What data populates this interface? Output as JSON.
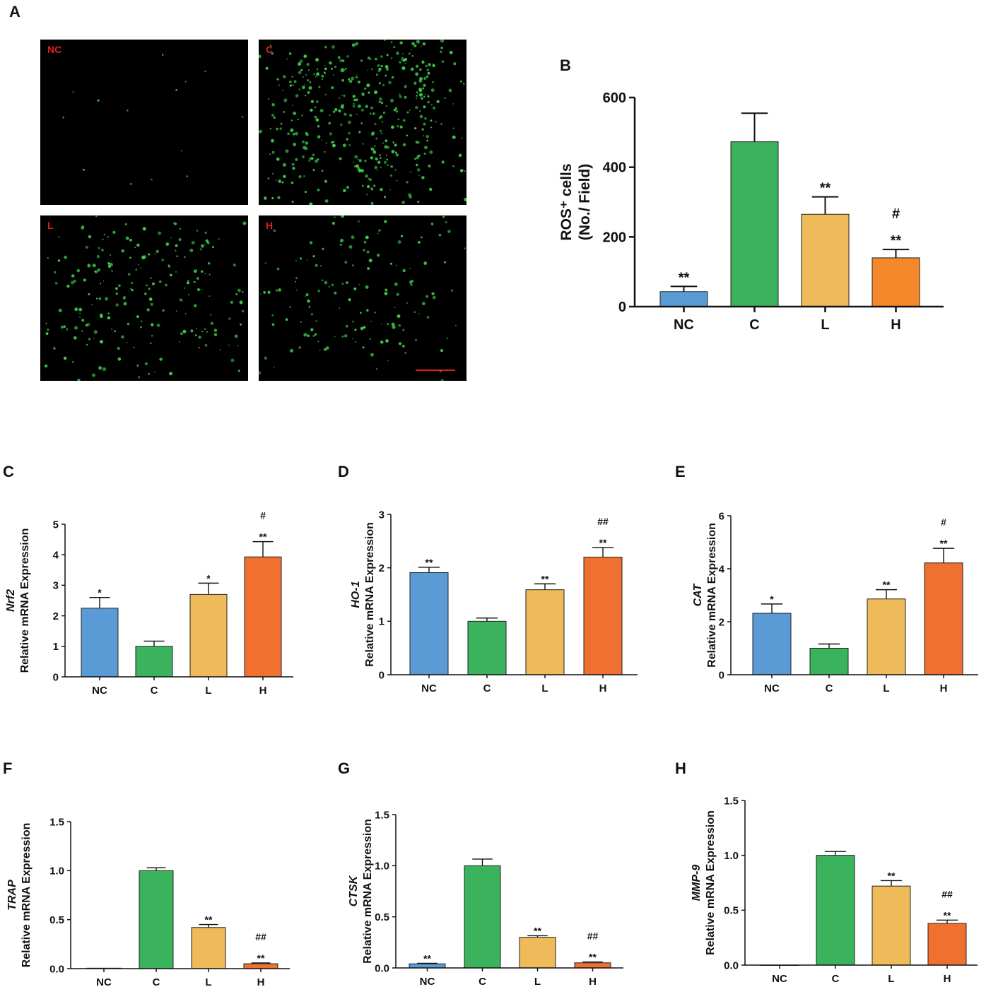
{
  "figure": {
    "panel_letters": [
      "A",
      "B",
      "C",
      "D",
      "E",
      "F",
      "G",
      "H"
    ],
    "micrographs": [
      {
        "label": "NC",
        "dots": 14,
        "bright": false
      },
      {
        "label": "C",
        "dots": 420,
        "bright": true
      },
      {
        "label": "L",
        "dots": 220,
        "bright": true
      },
      {
        "label": "H",
        "dots": 150,
        "bright": true
      }
    ],
    "scale_bar_color": "#e02020"
  },
  "colors": {
    "NC": "#5b9bd5",
    "C": "#3bb35c",
    "L": "#efba5a",
    "H": "#f07030",
    "H_alt": "#f5882a",
    "micro_dot": "#3fd04a"
  },
  "chart_data": [
    {
      "type": "bar",
      "panel": "B",
      "categories": [
        "NC",
        "C",
        "L",
        "H"
      ],
      "values": [
        43,
        473,
        265,
        140
      ],
      "errors": [
        15,
        82,
        50,
        24
      ],
      "significance": [
        [
          "**"
        ],
        [],
        [
          "**"
        ],
        [
          "**",
          "#"
        ]
      ],
      "ylabel_lines": [
        "ROS⁺ cells",
        "(No./ Field)"
      ],
      "ylabel_gene": "",
      "ylim": [
        0,
        600
      ],
      "yticks": [
        "0",
        "200",
        "400",
        "600"
      ]
    },
    {
      "type": "bar",
      "panel": "C",
      "categories": [
        "NC",
        "C",
        "L",
        "H"
      ],
      "values": [
        2.25,
        1.0,
        2.7,
        3.93
      ],
      "errors": [
        0.35,
        0.17,
        0.37,
        0.5
      ],
      "significance": [
        [
          "*"
        ],
        [],
        [
          "*"
        ],
        [
          "**",
          "#"
        ]
      ],
      "ylabel_gene": "Nrf2",
      "ylabel_lines": [
        "Relative  mRNA Expression"
      ],
      "ylim": [
        0,
        5
      ],
      "yticks": [
        "0",
        "1",
        "2",
        "3",
        "4",
        "5"
      ]
    },
    {
      "type": "bar",
      "panel": "D",
      "categories": [
        "NC",
        "C",
        "L",
        "H"
      ],
      "values": [
        1.91,
        1.0,
        1.59,
        2.2
      ],
      "errors": [
        0.1,
        0.06,
        0.11,
        0.18
      ],
      "significance": [
        [
          "**"
        ],
        [],
        [
          "**"
        ],
        [
          "**",
          "##"
        ]
      ],
      "ylabel_gene": "HO-1",
      "ylabel_lines": [
        "Relative  mRNA Expression"
      ],
      "ylim": [
        0,
        3
      ],
      "yticks": [
        "0",
        "1",
        "2",
        "3"
      ]
    },
    {
      "type": "bar",
      "panel": "E",
      "categories": [
        "NC",
        "C",
        "L",
        "H"
      ],
      "values": [
        2.32,
        1.0,
        2.86,
        4.22
      ],
      "errors": [
        0.35,
        0.16,
        0.35,
        0.55
      ],
      "significance": [
        [
          "*"
        ],
        [],
        [
          "**"
        ],
        [
          "**",
          "#"
        ]
      ],
      "ylabel_gene": "CAT",
      "ylabel_lines": [
        "Relative  mRNA Expression"
      ],
      "ylim": [
        0,
        6
      ],
      "yticks": [
        "0",
        "2",
        "4",
        "6"
      ]
    },
    {
      "type": "bar",
      "panel": "F",
      "categories": [
        "NC",
        "C",
        "L",
        "H"
      ],
      "values": [
        0.005,
        1.0,
        0.42,
        0.05
      ],
      "errors": [
        0.0,
        0.03,
        0.03,
        0.008
      ],
      "significance": [
        [],
        [],
        [
          "**"
        ],
        [
          "**",
          "##"
        ]
      ],
      "ylabel_gene": "TRAP",
      "ylabel_lines": [
        "Relative  mRNA Expression"
      ],
      "ylim": [
        0,
        1.5
      ],
      "yticks": [
        "0.0",
        "0.5",
        "1.0",
        "1.5"
      ]
    },
    {
      "type": "bar",
      "panel": "G",
      "categories": [
        "NC",
        "C",
        "L",
        "H"
      ],
      "values": [
        0.04,
        1.0,
        0.3,
        0.05
      ],
      "errors": [
        0.005,
        0.065,
        0.015,
        0.008
      ],
      "significance": [
        [
          "**"
        ],
        [],
        [
          "**"
        ],
        [
          "**",
          "##"
        ]
      ],
      "ylabel_gene": "CTSK",
      "ylabel_lines": [
        "Relative  mRNA Expression"
      ],
      "ylim": [
        0,
        1.5
      ],
      "yticks": [
        "0.0",
        "0.5",
        "1.0",
        "1.5"
      ]
    },
    {
      "type": "bar",
      "panel": "H",
      "categories": [
        "NC",
        "C",
        "L",
        "H"
      ],
      "values": [
        0.0,
        1.0,
        0.72,
        0.38
      ],
      "errors": [
        0.0,
        0.035,
        0.05,
        0.03
      ],
      "significance": [
        [],
        [],
        [
          "**"
        ],
        [
          "**",
          "##"
        ]
      ],
      "ylabel_gene": "MMP-9",
      "ylabel_lines": [
        "Relative  mRNA Expression"
      ],
      "ylim": [
        0,
        1.5
      ],
      "yticks": [
        "0.0",
        "0.5",
        "1.0",
        "1.5"
      ]
    }
  ]
}
